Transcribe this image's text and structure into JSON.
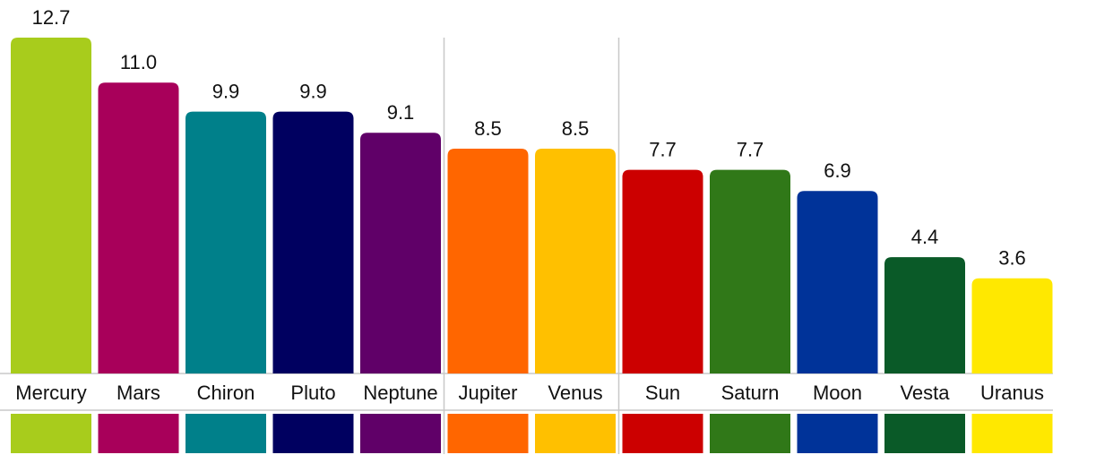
{
  "chart_data": {
    "type": "bar",
    "categories": [
      "Mercury",
      "Mars",
      "Chiron",
      "Pluto",
      "Neptune",
      "Jupiter",
      "Venus",
      "Sun",
      "Saturn",
      "Moon",
      "Vesta",
      "Uranus"
    ],
    "values": [
      12.7,
      11.0,
      9.9,
      9.9,
      9.1,
      8.5,
      8.5,
      7.7,
      7.7,
      6.9,
      4.4,
      3.6
    ],
    "value_labels": [
      "12.7",
      "11.0",
      "9.9",
      "9.9",
      "9.1",
      "8.5",
      "8.5",
      "7.7",
      "7.7",
      "6.9",
      "4.4",
      "3.6"
    ],
    "colors": [
      "#a8cc1c",
      "#a8005a",
      "#00808a",
      "#000060",
      "#600068",
      "#ff6600",
      "#ffc000",
      "#cc0000",
      "#307818",
      "#003399",
      "#0a5a28",
      "#ffe800"
    ]
  }
}
